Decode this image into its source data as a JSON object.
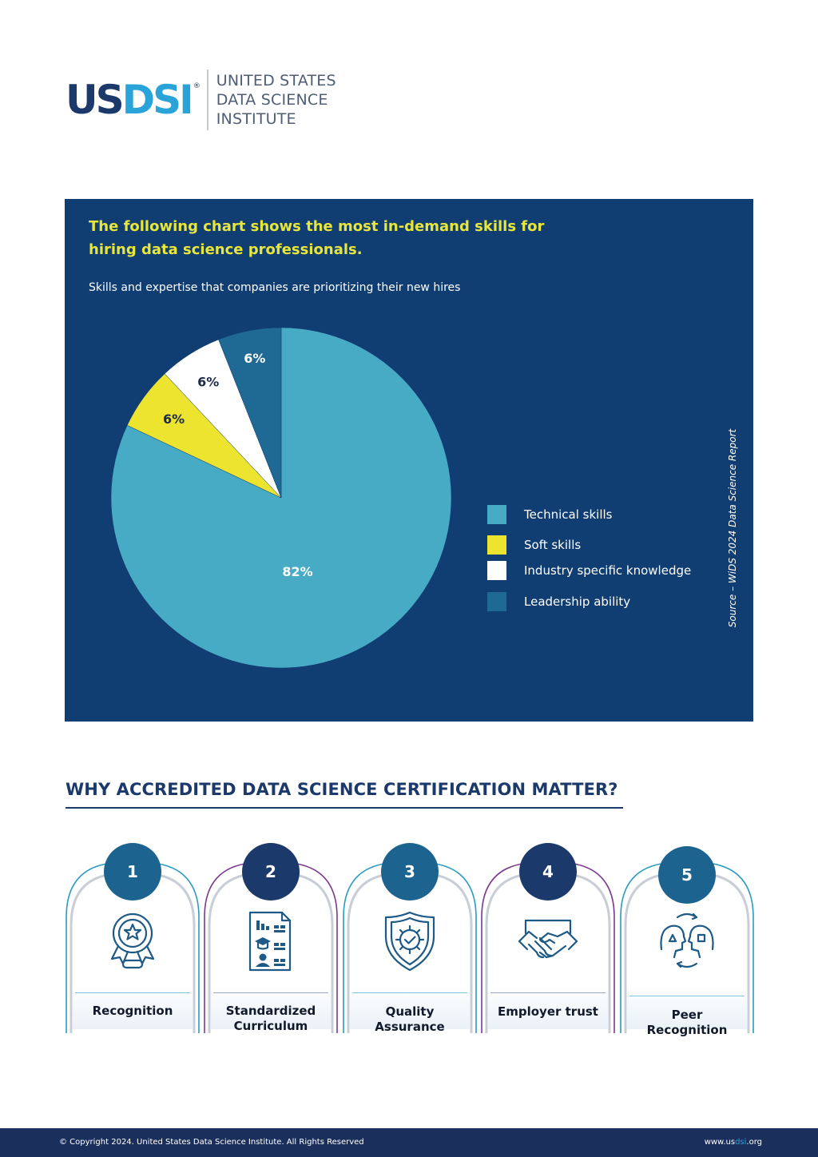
{
  "header": {
    "logo_us": "US",
    "logo_dsi": "DSI",
    "logo_reg": "®",
    "name_lines": [
      "UNITED STATES",
      "DATA SCIENCE",
      "INSTITUTE"
    ]
  },
  "panel": {
    "title": "The following chart shows the most in-demand skills for hiring data science professionals.",
    "subtitle": "Skills and expertise that companies are prioritizing their new hires",
    "source": "Source – WiDS 2024 Data Science Report"
  },
  "chart_data": {
    "type": "pie",
    "title": "",
    "slices": [
      {
        "name": "Technical skills",
        "value": 82,
        "label": "82%",
        "color": "#48abc6",
        "label_color": "#ffffff"
      },
      {
        "name": "Soft skills",
        "value": 6,
        "label": "6%",
        "color": "#ece42f",
        "label_color": "#1c2b4a"
      },
      {
        "name": "Industry specific knowledge",
        "value": 6,
        "label": "6%",
        "color": "#ffffff",
        "label_color": "#1c2b4a"
      },
      {
        "name": "Leadership ability",
        "value": 6,
        "label": "6%",
        "color": "#1e6a95",
        "label_color": "#ffffff"
      }
    ],
    "legend_position": "right"
  },
  "section": {
    "title": "WHY ACCREDITED DATA SCIENCE CERTIFICATION MATTER?"
  },
  "cards": [
    {
      "number": "1",
      "label_lines": [
        "Recognition"
      ],
      "icon": "award-medal-icon",
      "badge_color": "#1d6390",
      "arch_color": "#2b9bc0"
    },
    {
      "number": "2",
      "label_lines": [
        "Standardized",
        "Curriculum"
      ],
      "icon": "curriculum-document-icon",
      "badge_color": "#1b3a6b",
      "arch_color": "#7b3a8c"
    },
    {
      "number": "3",
      "label_lines": [
        "Quality",
        "Assurance"
      ],
      "icon": "quality-shield-icon",
      "badge_color": "#1d6390",
      "arch_color": "#2b9bc0"
    },
    {
      "number": "4",
      "label_lines": [
        "Employer trust"
      ],
      "icon": "handshake-icon",
      "badge_color": "#1b3a6b",
      "arch_color": "#7b3a8c"
    },
    {
      "number": "5",
      "label_lines": [
        "Peer",
        "Recognition"
      ],
      "icon": "peer-exchange-icon",
      "badge_color": "#1d6390",
      "arch_color": "#2b9bc0"
    }
  ],
  "footer": {
    "copyright": "© Copyright 2024. United States Data Science Institute. All Rights Reserved",
    "url_pre": "www.us",
    "url_hl": "dsi",
    "url_post": ".org"
  }
}
